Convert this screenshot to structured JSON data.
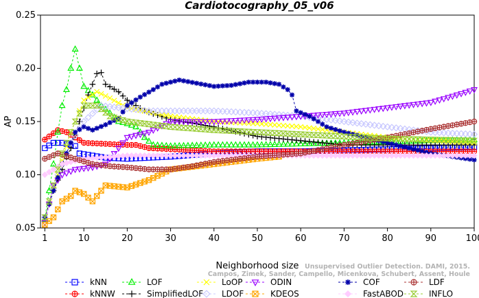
{
  "chart_data": {
    "type": "line",
    "title": "Cardiotocography_05_v06",
    "xlabel": "Neighborhood size",
    "ylabel": "AP",
    "xlim": [
      0,
      100
    ],
    "ylim": [
      0.05,
      0.25
    ],
    "x_ticks": [
      1,
      10,
      20,
      30,
      40,
      50,
      60,
      70,
      80,
      90,
      100
    ],
    "y_ticks": [
      0.05,
      0.1,
      0.15,
      0.2,
      0.25
    ],
    "x_tick_labels": [
      "1",
      "10",
      "20",
      "30",
      "40",
      "50",
      "60",
      "70",
      "80",
      "90",
      "100"
    ],
    "y_tick_labels": [
      "0.05",
      "0.10",
      "0.15",
      "0.20",
      "0.25"
    ],
    "legend_position": "bottom",
    "series": [
      {
        "name": "kNN",
        "color": "#0000ff",
        "marker": "square",
        "anchors": [
          [
            1,
            0.125
          ],
          [
            3,
            0.13
          ],
          [
            5,
            0.13
          ],
          [
            7,
            0.128
          ],
          [
            8,
            0.127
          ],
          [
            9,
            0.12
          ],
          [
            12,
            0.118
          ],
          [
            15,
            0.116
          ],
          [
            20,
            0.115
          ],
          [
            30,
            0.117
          ],
          [
            40,
            0.12
          ],
          [
            50,
            0.122
          ],
          [
            60,
            0.122
          ],
          [
            70,
            0.123
          ],
          [
            80,
            0.124
          ],
          [
            90,
            0.125
          ],
          [
            100,
            0.126
          ]
        ]
      },
      {
        "name": "kNNW",
        "color": "#ff0000",
        "marker": "circle-plus",
        "anchors": [
          [
            1,
            0.133
          ],
          [
            4,
            0.142
          ],
          [
            6,
            0.14
          ],
          [
            8,
            0.135
          ],
          [
            10,
            0.13
          ],
          [
            15,
            0.129
          ],
          [
            20,
            0.128
          ],
          [
            22,
            0.128
          ],
          [
            25,
            0.125
          ],
          [
            30,
            0.124
          ],
          [
            40,
            0.122
          ],
          [
            50,
            0.122
          ],
          [
            60,
            0.122
          ],
          [
            70,
            0.122
          ],
          [
            80,
            0.122
          ],
          [
            90,
            0.122
          ],
          [
            100,
            0.122
          ]
        ]
      },
      {
        "name": "LOF",
        "color": "#00ee00",
        "marker": "triangle",
        "anchors": [
          [
            1,
            0.058
          ],
          [
            2,
            0.085
          ],
          [
            3,
            0.11
          ],
          [
            4,
            0.14
          ],
          [
            5,
            0.165
          ],
          [
            6,
            0.18
          ],
          [
            7,
            0.2
          ],
          [
            8,
            0.218
          ],
          [
            9,
            0.2
          ],
          [
            10,
            0.183
          ],
          [
            12,
            0.175
          ],
          [
            14,
            0.165
          ],
          [
            16,
            0.158
          ],
          [
            18,
            0.15
          ],
          [
            20,
            0.148
          ],
          [
            22,
            0.145
          ],
          [
            24,
            0.135
          ],
          [
            26,
            0.128
          ],
          [
            30,
            0.127
          ],
          [
            40,
            0.128
          ],
          [
            50,
            0.128
          ],
          [
            60,
            0.129
          ],
          [
            70,
            0.13
          ],
          [
            80,
            0.131
          ],
          [
            90,
            0.132
          ],
          [
            100,
            0.133
          ]
        ]
      },
      {
        "name": "SimplifiedLOF",
        "color": "#000000",
        "marker": "plus",
        "anchors": [
          [
            1,
            0.06
          ],
          [
            3,
            0.085
          ],
          [
            5,
            0.105
          ],
          [
            7,
            0.125
          ],
          [
            9,
            0.15
          ],
          [
            11,
            0.175
          ],
          [
            13,
            0.195
          ],
          [
            14,
            0.196
          ],
          [
            15,
            0.185
          ],
          [
            18,
            0.178
          ],
          [
            20,
            0.17
          ],
          [
            24,
            0.16
          ],
          [
            30,
            0.152
          ],
          [
            40,
            0.145
          ],
          [
            50,
            0.136
          ],
          [
            60,
            0.132
          ],
          [
            65,
            0.13
          ],
          [
            70,
            0.128
          ],
          [
            80,
            0.128
          ],
          [
            90,
            0.128
          ],
          [
            100,
            0.128
          ]
        ]
      },
      {
        "name": "LoOP",
        "color": "#ffff00",
        "marker": "x",
        "anchors": [
          [
            1,
            0.06
          ],
          [
            4,
            0.1
          ],
          [
            7,
            0.14
          ],
          [
            10,
            0.17
          ],
          [
            13,
            0.178
          ],
          [
            16,
            0.172
          ],
          [
            20,
            0.163
          ],
          [
            30,
            0.155
          ],
          [
            40,
            0.15
          ],
          [
            50,
            0.148
          ],
          [
            60,
            0.145
          ],
          [
            70,
            0.14
          ],
          [
            80,
            0.135
          ],
          [
            90,
            0.132
          ],
          [
            100,
            0.13
          ]
        ]
      },
      {
        "name": "LDOF",
        "color": "#c8c8ff",
        "marker": "diamond",
        "anchors": [
          [
            1,
            0.06
          ],
          [
            4,
            0.1
          ],
          [
            7,
            0.13
          ],
          [
            10,
            0.15
          ],
          [
            14,
            0.165
          ],
          [
            18,
            0.163
          ],
          [
            25,
            0.16
          ],
          [
            30,
            0.16
          ],
          [
            40,
            0.16
          ],
          [
            50,
            0.158
          ],
          [
            60,
            0.155
          ],
          [
            70,
            0.15
          ],
          [
            80,
            0.145
          ],
          [
            90,
            0.14
          ],
          [
            100,
            0.138
          ]
        ]
      },
      {
        "name": "ODIN",
        "color": "#9900ff",
        "marker": "triangle-down",
        "anchors": [
          [
            1,
            0.055
          ],
          [
            3,
            0.09
          ],
          [
            5,
            0.1
          ],
          [
            8,
            0.105
          ],
          [
            12,
            0.107
          ],
          [
            15,
            0.11
          ],
          [
            20,
            0.135
          ],
          [
            25,
            0.14
          ],
          [
            30,
            0.15
          ],
          [
            40,
            0.15
          ],
          [
            50,
            0.152
          ],
          [
            60,
            0.155
          ],
          [
            70,
            0.158
          ],
          [
            80,
            0.163
          ],
          [
            90,
            0.168
          ],
          [
            96,
            0.175
          ],
          [
            100,
            0.18
          ]
        ]
      },
      {
        "name": "KDEOS",
        "color": "#ffa500",
        "marker": "square-x",
        "anchors": [
          [
            1,
            0.053
          ],
          [
            3,
            0.06
          ],
          [
            5,
            0.075
          ],
          [
            7,
            0.08
          ],
          [
            8,
            0.085
          ],
          [
            10,
            0.082
          ],
          [
            12,
            0.075
          ],
          [
            15,
            0.09
          ],
          [
            20,
            0.088
          ],
          [
            25,
            0.095
          ],
          [
            30,
            0.105
          ],
          [
            40,
            0.11
          ],
          [
            50,
            0.115
          ],
          [
            55,
            0.117
          ]
        ]
      },
      {
        "name": "COF",
        "color": "#0000aa",
        "marker": "star",
        "anchors": [
          [
            1,
            0.06
          ],
          [
            5,
            0.11
          ],
          [
            8,
            0.14
          ],
          [
            10,
            0.145
          ],
          [
            12,
            0.142
          ],
          [
            15,
            0.147
          ],
          [
            18,
            0.153
          ],
          [
            20,
            0.165
          ],
          [
            23,
            0.173
          ],
          [
            26,
            0.18
          ],
          [
            28,
            0.185
          ],
          [
            32,
            0.189
          ],
          [
            36,
            0.186
          ],
          [
            40,
            0.183
          ],
          [
            44,
            0.184
          ],
          [
            48,
            0.187
          ],
          [
            52,
            0.187
          ],
          [
            55,
            0.185
          ],
          [
            57,
            0.18
          ],
          [
            58,
            0.175
          ],
          [
            59,
            0.16
          ],
          [
            62,
            0.155
          ],
          [
            66,
            0.145
          ],
          [
            70,
            0.14
          ],
          [
            80,
            0.13
          ],
          [
            90,
            0.12
          ],
          [
            100,
            0.114
          ]
        ]
      },
      {
        "name": "FastABOD",
        "color": "#ffccff",
        "marker": "diamond-fill",
        "anchors": [
          [
            1,
            0.1
          ],
          [
            5,
            0.11
          ],
          [
            10,
            0.115
          ],
          [
            20,
            0.118
          ],
          [
            30,
            0.118
          ],
          [
            40,
            0.118
          ],
          [
            50,
            0.118
          ],
          [
            60,
            0.118
          ],
          [
            70,
            0.118
          ],
          [
            80,
            0.118
          ],
          [
            90,
            0.118
          ],
          [
            100,
            0.118
          ]
        ]
      },
      {
        "name": "LDF",
        "color": "#aa3333",
        "marker": "circle-plus",
        "anchors": [
          [
            1,
            0.115
          ],
          [
            4,
            0.12
          ],
          [
            8,
            0.115
          ],
          [
            12,
            0.11
          ],
          [
            16,
            0.108
          ],
          [
            20,
            0.107
          ],
          [
            25,
            0.105
          ],
          [
            30,
            0.105
          ],
          [
            35,
            0.108
          ],
          [
            40,
            0.112
          ],
          [
            50,
            0.117
          ],
          [
            60,
            0.12
          ],
          [
            70,
            0.128
          ],
          [
            80,
            0.135
          ],
          [
            90,
            0.143
          ],
          [
            100,
            0.15
          ]
        ]
      },
      {
        "name": "INFLO",
        "color": "#99cc33",
        "marker": "hourglass",
        "anchors": [
          [
            1,
            0.06
          ],
          [
            3,
            0.09
          ],
          [
            5,
            0.12
          ],
          [
            8,
            0.15
          ],
          [
            10,
            0.165
          ],
          [
            13,
            0.165
          ],
          [
            16,
            0.155
          ],
          [
            20,
            0.15
          ],
          [
            24,
            0.148
          ],
          [
            30,
            0.145
          ],
          [
            40,
            0.142
          ],
          [
            50,
            0.14
          ],
          [
            60,
            0.138
          ],
          [
            70,
            0.136
          ],
          [
            80,
            0.134
          ],
          [
            90,
            0.133
          ],
          [
            100,
            0.132
          ]
        ]
      }
    ]
  },
  "watermark": {
    "line1": "Unsupervised Outlier Detection. DAMI, 2015.",
    "line2": "Campos, Zimek, Sander, Campello, Micenkova, Schubert, Assent, Houle"
  }
}
